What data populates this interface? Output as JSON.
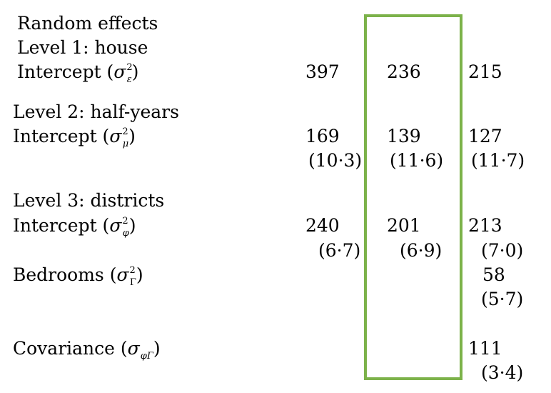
{
  "headings": {
    "random_effects": "Random effects",
    "level1": "Level 1: house",
    "level2": "Level 2: half-years",
    "level3": "Level 3: districts"
  },
  "rows": {
    "intercept": "Intercept (",
    "bedrooms": "Bedrooms (",
    "covariance": "Covariance (",
    "close_paren": ")",
    "sigma": "σ",
    "sq": "2",
    "sub_epsilon": "ε",
    "sub_mu": "μ",
    "sub_phi": "φ",
    "sub_gamma": "Γ",
    "sub_phigamma": "φΓ"
  },
  "values": {
    "level1_intercept": [
      "397",
      "236",
      "215"
    ],
    "level2_intercept": [
      "169",
      "139",
      "127"
    ],
    "level2_intercept_se": [
      "(10·3)",
      "(11·6)",
      "(11·7)"
    ],
    "level3_intercept": [
      "240",
      "201",
      "213"
    ],
    "level3_intercept_se": [
      "(6·7)",
      "(6·9)",
      "(7·0)"
    ],
    "bedrooms": "58",
    "bedrooms_se": "(5·7)",
    "covariance": "111",
    "covariance_se": "(3·4)"
  },
  "colors": {
    "highlight_box": "#7cb24a"
  }
}
